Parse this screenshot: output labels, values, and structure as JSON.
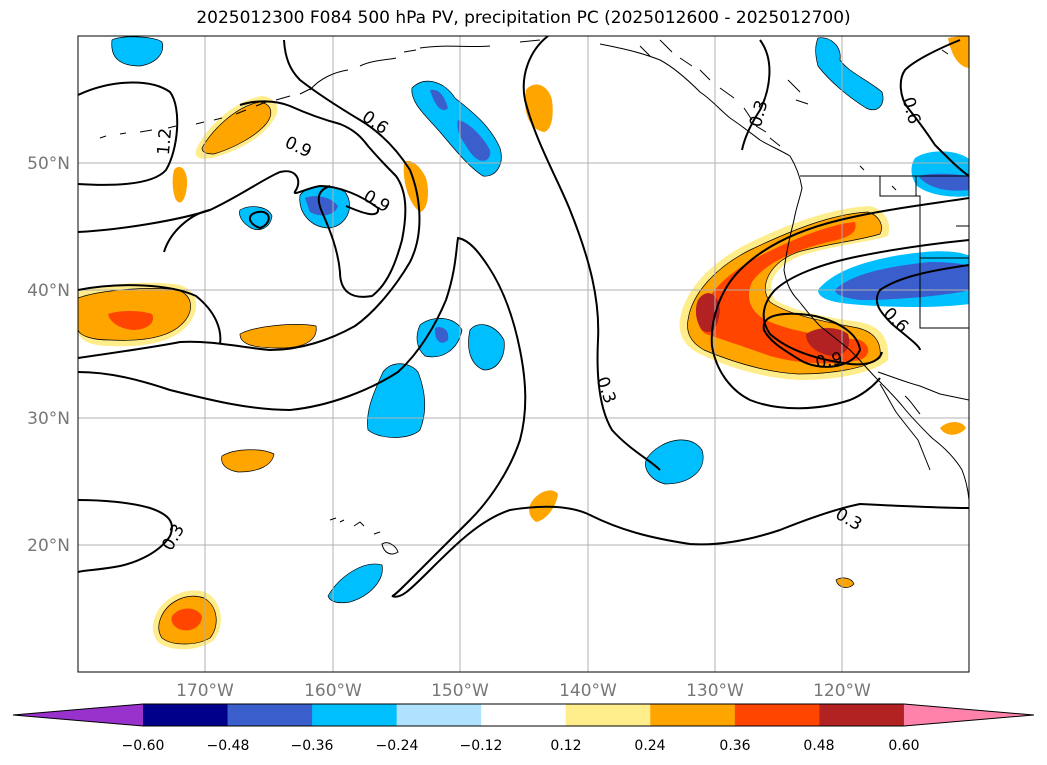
{
  "title": "2025012300 F084 500 hPa PV, precipitation PC (2025012600 - 2025012700)",
  "map": {
    "lat_labels": [
      "50°N",
      "40°N",
      "30°N",
      "20°N"
    ],
    "lon_labels": [
      "170°W",
      "160°W",
      "150°W",
      "140°W",
      "130°W",
      "120°W"
    ],
    "contour_labels": [
      "1.2",
      "0.9",
      "0.6",
      "0.9",
      "0.3",
      "0.3",
      "0.3",
      "0.6",
      "0.9",
      "0.3"
    ]
  },
  "colorbar": {
    "ticks": [
      "−0.60",
      "−0.48",
      "−0.36",
      "−0.24",
      "−0.12",
      "0.12",
      "0.24",
      "0.36",
      "0.48",
      "0.60"
    ],
    "colors": [
      "#9932cc",
      "#00008b",
      "#3a5fcd",
      "#00bfff",
      "#b0e2ff",
      "#ffffff",
      "#ffec8b",
      "#ffa500",
      "#ff4500",
      "#b22222",
      "#ff82ab"
    ]
  }
}
